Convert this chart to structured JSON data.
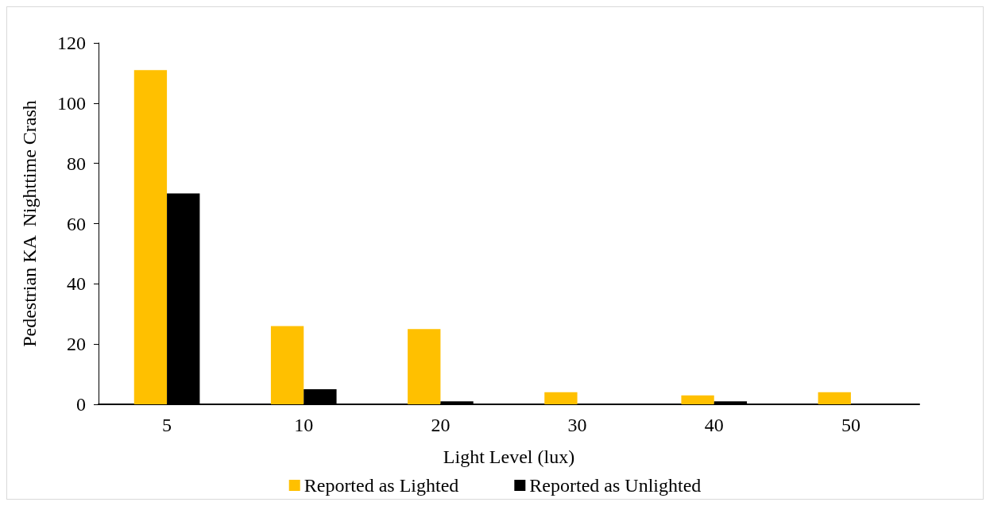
{
  "chart_data": {
    "type": "bar",
    "xlabel": "Light Level (lux)",
    "ylabel": "Pedestrian KA  Nighttime Crash",
    "categories": [
      "5",
      "10",
      "20",
      "30",
      "40",
      "50"
    ],
    "series": [
      {
        "name": "Reported as Lighted",
        "color": "#ffc000",
        "values": [
          111,
          26,
          25,
          4,
          3,
          4
        ]
      },
      {
        "name": "Reported as Unlighted",
        "color": "#000000",
        "values": [
          70,
          5,
          1,
          0,
          1,
          0
        ]
      }
    ],
    "ylim": [
      0,
      120
    ],
    "yticks": [
      0,
      20,
      40,
      60,
      80,
      100,
      120
    ],
    "grid": false,
    "legend": "bottom"
  }
}
